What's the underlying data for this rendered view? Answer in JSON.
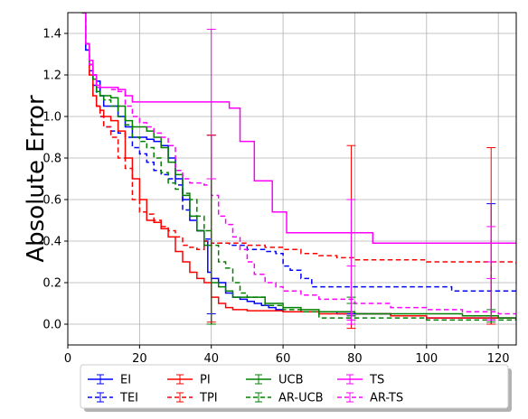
{
  "chart_data": {
    "type": "line",
    "title": "",
    "xlabel": "",
    "ylabel": "Absolute Error",
    "xlim": [
      0,
      125
    ],
    "ylim": [
      -0.1,
      1.5
    ],
    "xticks": [
      0,
      20,
      40,
      60,
      80,
      100,
      120
    ],
    "yticks": [
      0.0,
      0.2,
      0.4,
      0.6,
      0.8,
      1.0,
      1.2,
      1.4
    ],
    "grid": true,
    "legend_position": "bottom, below axes",
    "series": [
      {
        "name": "EI",
        "color": "#0000ff",
        "dash": "solid",
        "x": [
          4,
          5,
          6,
          7,
          8,
          9,
          10,
          12,
          14,
          16,
          18,
          20,
          22,
          24,
          26,
          28,
          30,
          32,
          34,
          36,
          38,
          39,
          40,
          42,
          44,
          46,
          48,
          50,
          52,
          54,
          56,
          58,
          60,
          65,
          70,
          75,
          80,
          90,
          100,
          110,
          120,
          125
        ],
        "y": [
          1.5,
          1.32,
          1.25,
          1.2,
          1.17,
          1.1,
          1.05,
          1.05,
          1.0,
          0.95,
          0.9,
          0.9,
          0.89,
          0.88,
          0.86,
          0.8,
          0.7,
          0.6,
          0.5,
          0.45,
          0.4,
          0.25,
          0.22,
          0.2,
          0.15,
          0.13,
          0.12,
          0.11,
          0.1,
          0.09,
          0.08,
          0.07,
          0.06,
          0.06,
          0.06,
          0.05,
          0.05,
          0.04,
          0.03,
          0.03,
          0.03,
          0.02
        ],
        "errorbars": [
          {
            "x": 40,
            "low": 0.0,
            "high": 0.91
          },
          {
            "x": 79,
            "low": 0.04,
            "high": 0.6
          },
          {
            "x": 118,
            "low": 0.0,
            "high": 0.58
          }
        ]
      },
      {
        "name": "TEI",
        "color": "#0000ff",
        "dash": "dashed",
        "x": [
          4,
          5,
          6,
          7,
          8,
          9,
          10,
          12,
          14,
          16,
          18,
          20,
          22,
          24,
          26,
          28,
          30,
          32,
          34,
          36,
          38,
          40,
          45,
          50,
          55,
          58,
          60,
          62,
          65,
          68,
          70,
          80,
          90,
          100,
          107,
          110,
          120,
          125
        ],
        "y": [
          1.5,
          1.32,
          1.22,
          1.15,
          1.05,
          1.0,
          0.95,
          0.93,
          0.92,
          0.9,
          0.85,
          0.82,
          0.78,
          0.74,
          0.72,
          0.7,
          0.67,
          0.55,
          0.52,
          0.45,
          0.41,
          0.39,
          0.38,
          0.36,
          0.35,
          0.34,
          0.28,
          0.26,
          0.22,
          0.18,
          0.18,
          0.18,
          0.18,
          0.18,
          0.16,
          0.16,
          0.16,
          0.16
        ],
        "errorbars": [
          {
            "x": 40,
            "low": 0.05,
            "high": 0.7
          },
          {
            "x": 79,
            "low": 0.05,
            "high": 0.6
          },
          {
            "x": 118,
            "low": 0.02,
            "high": 0.3
          }
        ]
      },
      {
        "name": "PI",
        "color": "#ff0000",
        "dash": "solid",
        "x": [
          4,
          5,
          6,
          7,
          8,
          9,
          10,
          12,
          14,
          16,
          18,
          20,
          22,
          24,
          26,
          28,
          30,
          32,
          34,
          36,
          38,
          40,
          42,
          44,
          46,
          48,
          50,
          60,
          70,
          80,
          90,
          100,
          110,
          120,
          125
        ],
        "y": [
          1.5,
          1.35,
          1.2,
          1.1,
          1.05,
          1.03,
          1.0,
          0.98,
          0.93,
          0.8,
          0.7,
          0.6,
          0.5,
          0.49,
          0.46,
          0.42,
          0.35,
          0.3,
          0.25,
          0.22,
          0.2,
          0.13,
          0.1,
          0.08,
          0.07,
          0.07,
          0.065,
          0.06,
          0.05,
          0.05,
          0.04,
          0.03,
          0.03,
          0.03,
          0.02
        ],
        "errorbars": [
          {
            "x": 40,
            "low": 0.0,
            "high": 0.91
          },
          {
            "x": 79,
            "low": -0.02,
            "high": 0.86
          },
          {
            "x": 118,
            "low": 0.0,
            "high": 0.85
          }
        ]
      },
      {
        "name": "TPI",
        "color": "#ff0000",
        "dash": "dashed",
        "x": [
          4,
          5,
          6,
          7,
          8,
          9,
          10,
          12,
          14,
          16,
          18,
          20,
          22,
          24,
          26,
          28,
          30,
          32,
          34,
          36,
          38,
          40,
          45,
          50,
          55,
          60,
          65,
          70,
          75,
          80,
          90,
          100,
          110,
          120,
          125
        ],
        "y": [
          1.5,
          1.35,
          1.2,
          1.1,
          1.05,
          1.0,
          0.95,
          0.9,
          0.8,
          0.75,
          0.6,
          0.54,
          0.53,
          0.5,
          0.47,
          0.45,
          0.42,
          0.38,
          0.37,
          0.36,
          0.4,
          0.39,
          0.39,
          0.38,
          0.37,
          0.36,
          0.34,
          0.33,
          0.32,
          0.31,
          0.31,
          0.3,
          0.3,
          0.3,
          0.29
        ],
        "errorbars": [
          {
            "x": 40,
            "low": 0.01,
            "high": 0.7
          }
        ]
      },
      {
        "name": "UCB",
        "color": "#008000",
        "dash": "solid",
        "x": [
          4,
          5,
          6,
          7,
          8,
          9,
          10,
          12,
          14,
          16,
          18,
          20,
          22,
          24,
          26,
          28,
          30,
          32,
          34,
          36,
          38,
          40,
          42,
          44,
          46,
          48,
          50,
          55,
          60,
          65,
          70,
          80,
          90,
          100,
          110,
          120,
          125
        ],
        "y": [
          1.5,
          1.35,
          1.25,
          1.18,
          1.12,
          1.1,
          1.1,
          1.09,
          1.05,
          0.98,
          0.95,
          0.95,
          0.93,
          0.9,
          0.85,
          0.78,
          0.72,
          0.62,
          0.52,
          0.45,
          0.38,
          0.2,
          0.18,
          0.16,
          0.13,
          0.13,
          0.13,
          0.1,
          0.08,
          0.07,
          0.06,
          0.05,
          0.05,
          0.05,
          0.04,
          0.03,
          0.03
        ],
        "errorbars": [
          {
            "x": 40,
            "low": 0.0,
            "high": 0.7
          },
          {
            "x": 79,
            "low": 0.04,
            "high": 0.13
          }
        ]
      },
      {
        "name": "AR-UCB",
        "color": "#008000",
        "dash": "dashed",
        "x": [
          4,
          5,
          6,
          7,
          8,
          9,
          10,
          12,
          14,
          16,
          18,
          20,
          22,
          24,
          26,
          28,
          30,
          32,
          34,
          36,
          38,
          40,
          42,
          44,
          46,
          48,
          50,
          55,
          60,
          65,
          70,
          75,
          80,
          90,
          100,
          110,
          120,
          125
        ],
        "y": [
          1.5,
          1.35,
          1.25,
          1.18,
          1.12,
          1.1,
          1.08,
          1.05,
          1.0,
          0.96,
          0.9,
          0.88,
          0.85,
          0.8,
          0.73,
          0.68,
          0.65,
          0.63,
          0.6,
          0.52,
          0.45,
          0.38,
          0.3,
          0.27,
          0.2,
          0.15,
          0.13,
          0.09,
          0.07,
          0.06,
          0.03,
          0.03,
          0.03,
          0.03,
          0.02,
          0.02,
          0.02,
          0.02
        ],
        "errorbars": [
          {
            "x": 40,
            "low": 0.0,
            "high": 0.7
          },
          {
            "x": 79,
            "low": 0.02,
            "high": 0.1
          },
          {
            "x": 118,
            "low": 0.01,
            "high": 0.07
          }
        ]
      },
      {
        "name": "TS",
        "color": "#ff00ff",
        "dash": "solid",
        "x": [
          4,
          5,
          6,
          7,
          8,
          9,
          10,
          12,
          14,
          16,
          18,
          20,
          25,
          30,
          35,
          40,
          45,
          48,
          50,
          52,
          55,
          57,
          60,
          61,
          62,
          65,
          70,
          80,
          84,
          85,
          90,
          100,
          110,
          120,
          125
        ],
        "y": [
          1.5,
          1.35,
          1.27,
          1.2,
          1.15,
          1.14,
          1.14,
          1.14,
          1.13,
          1.1,
          1.07,
          1.07,
          1.07,
          1.07,
          1.07,
          1.07,
          1.04,
          0.88,
          0.88,
          0.69,
          0.69,
          0.54,
          0.54,
          0.44,
          0.44,
          0.44,
          0.44,
          0.44,
          0.44,
          0.39,
          0.39,
          0.39,
          0.39,
          0.39,
          0.39
        ],
        "errorbars": [
          {
            "x": 40,
            "low": 0.7,
            "high": 1.42
          },
          {
            "x": 79,
            "low": 0.0,
            "high": 0.6
          },
          {
            "x": 118,
            "low": 0.3,
            "high": 0.47
          }
        ]
      },
      {
        "name": "AR-TS",
        "color": "#ff00ff",
        "dash": "dashed",
        "x": [
          4,
          5,
          6,
          7,
          8,
          9,
          10,
          12,
          14,
          16,
          18,
          20,
          22,
          24,
          26,
          28,
          30,
          32,
          34,
          36,
          38,
          40,
          42,
          44,
          46,
          48,
          50,
          52,
          55,
          58,
          60,
          65,
          70,
          80,
          90,
          100,
          110,
          120,
          125
        ],
        "y": [
          1.5,
          1.35,
          1.25,
          1.2,
          1.14,
          1.14,
          1.14,
          1.13,
          1.12,
          1.05,
          1.0,
          0.97,
          0.95,
          0.92,
          0.9,
          0.86,
          0.74,
          0.7,
          0.68,
          0.68,
          0.67,
          0.62,
          0.52,
          0.48,
          0.42,
          0.36,
          0.3,
          0.24,
          0.2,
          0.18,
          0.16,
          0.14,
          0.12,
          0.1,
          0.08,
          0.07,
          0.06,
          0.05,
          0.05
        ],
        "errorbars": [
          {
            "x": 79,
            "low": 0.02,
            "high": 0.28
          },
          {
            "x": 118,
            "low": 0.02,
            "high": 0.22
          }
        ]
      }
    ]
  }
}
